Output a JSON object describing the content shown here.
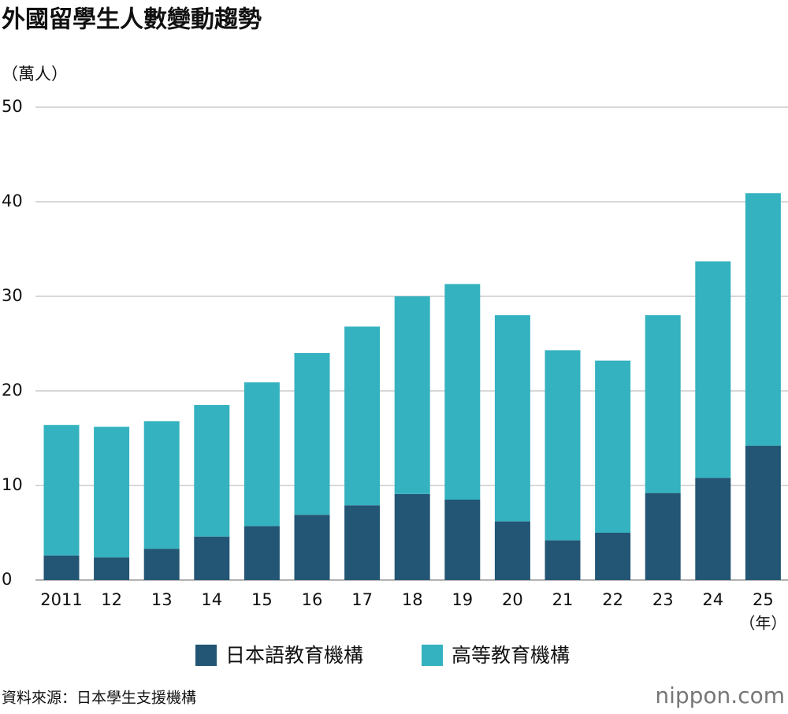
{
  "chart_data": {
    "type": "stacked_bar",
    "title": "外國留學生人數變動趨勢",
    "y_label": "（萬人）",
    "x_label": "（年）",
    "categories": [
      "2011",
      "12",
      "13",
      "14",
      "15",
      "16",
      "17",
      "18",
      "19",
      "20",
      "21",
      "22",
      "23",
      "24",
      "25"
    ],
    "series": [
      {
        "name": "日本語教育機構",
        "color": "#235574",
        "values": [
          2.6,
          2.4,
          3.3,
          4.6,
          5.7,
          6.9,
          7.9,
          9.1,
          8.5,
          6.2,
          4.2,
          5.0,
          9.2,
          10.8,
          14.2
        ]
      },
      {
        "name": "高等教育機構",
        "color": "#34b2c0",
        "values": [
          13.8,
          13.8,
          13.5,
          13.9,
          15.2,
          17.1,
          18.9,
          20.9,
          22.8,
          21.8,
          20.1,
          18.2,
          18.8,
          22.9,
          26.7
        ]
      }
    ],
    "ylim": [
      0,
      50
    ],
    "yticks": [
      0,
      10,
      20,
      30,
      40,
      50
    ],
    "grid": true,
    "source": "資料來源：日本學生支援機構",
    "logo": "nippon.com"
  }
}
